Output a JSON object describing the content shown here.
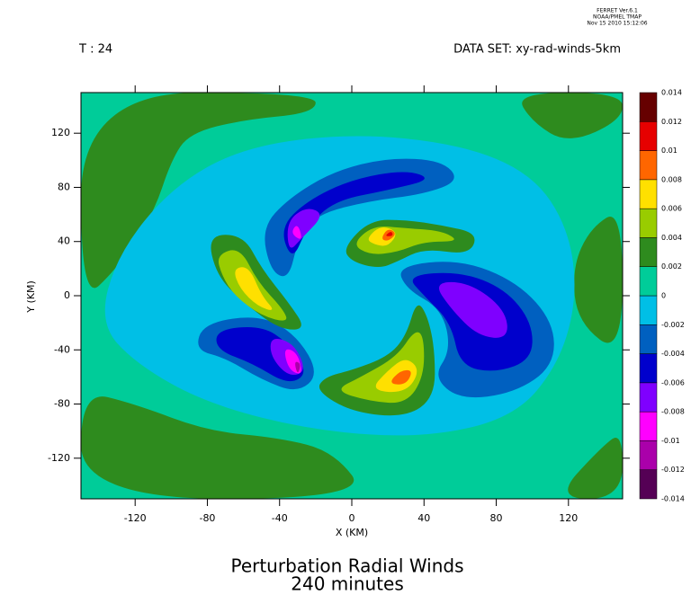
{
  "chart_data": {
    "type": "contour",
    "title": "Perturbation Radial Winds",
    "subtitle": "240 minutes",
    "header_left": "T : 24",
    "header_right": "DATA SET: xy-rad-winds-5km",
    "stamp": [
      "FERRET Ver.6.1",
      "NOAA/PMEL TMAP",
      "Nov 15 2010 15:12:06"
    ],
    "xlabel": "X (KM)",
    "ylabel": "Y (KM)",
    "xlim": [
      -150,
      150
    ],
    "ylim": [
      -150,
      150
    ],
    "xticks": [
      -120,
      -80,
      -40,
      0,
      40,
      80,
      120
    ],
    "yticks": [
      -120,
      -80,
      -40,
      0,
      40,
      80,
      120
    ],
    "levels": [
      -0.014,
      -0.012,
      -0.01,
      -0.008,
      -0.006,
      -0.004,
      -0.002,
      0,
      0.002,
      0.004,
      0.006,
      0.008,
      0.01,
      0.012,
      0.014
    ],
    "colors": [
      "#550055",
      "#aa00aa",
      "#ff00ff",
      "#7f00ff",
      "#0000cc",
      "#0060c0",
      "#00bfe6",
      "#00cc99",
      "#2e8b1e",
      "#99cc00",
      "#ffe000",
      "#ff6600",
      "#e60000",
      "#660000"
    ]
  }
}
